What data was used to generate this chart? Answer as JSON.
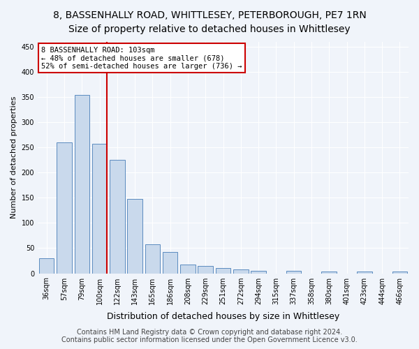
{
  "title1": "8, BASSENHALLY ROAD, WHITTLESEY, PETERBOROUGH, PE7 1RN",
  "title2": "Size of property relative to detached houses in Whittlesey",
  "xlabel": "Distribution of detached houses by size in Whittlesey",
  "ylabel": "Number of detached properties",
  "categories": [
    "36sqm",
    "57sqm",
    "79sqm",
    "100sqm",
    "122sqm",
    "143sqm",
    "165sqm",
    "186sqm",
    "208sqm",
    "229sqm",
    "251sqm",
    "272sqm",
    "294sqm",
    "315sqm",
    "337sqm",
    "358sqm",
    "380sqm",
    "401sqm",
    "423sqm",
    "444sqm",
    "466sqm"
  ],
  "values": [
    30,
    260,
    355,
    258,
    225,
    148,
    57,
    43,
    18,
    14,
    10,
    8,
    5,
    0,
    5,
    0,
    3,
    0,
    4,
    0,
    4
  ],
  "bar_color": "#c9d9ec",
  "bar_edge_color": "#5a8bbf",
  "highlight_index": 3,
  "vline_x": 3,
  "vline_color": "#cc0000",
  "annotation_line1": "8 BASSENHALLY ROAD: 103sqm",
  "annotation_line2": "← 48% of detached houses are smaller (678)",
  "annotation_line3": "52% of semi-detached houses are larger (736) →",
  "annotation_box_color": "#cc0000",
  "ylim": [
    0,
    460
  ],
  "yticks": [
    0,
    50,
    100,
    150,
    200,
    250,
    300,
    350,
    400,
    450
  ],
  "footer_line1": "Contains HM Land Registry data © Crown copyright and database right 2024.",
  "footer_line2": "Contains public sector information licensed under the Open Government Licence v3.0.",
  "background_color": "#f0f4fa",
  "grid_color": "#ffffff",
  "title1_fontsize": 10,
  "title2_fontsize": 10,
  "xlabel_fontsize": 9,
  "ylabel_fontsize": 8,
  "tick_fontsize": 7,
  "footer_fontsize": 7
}
